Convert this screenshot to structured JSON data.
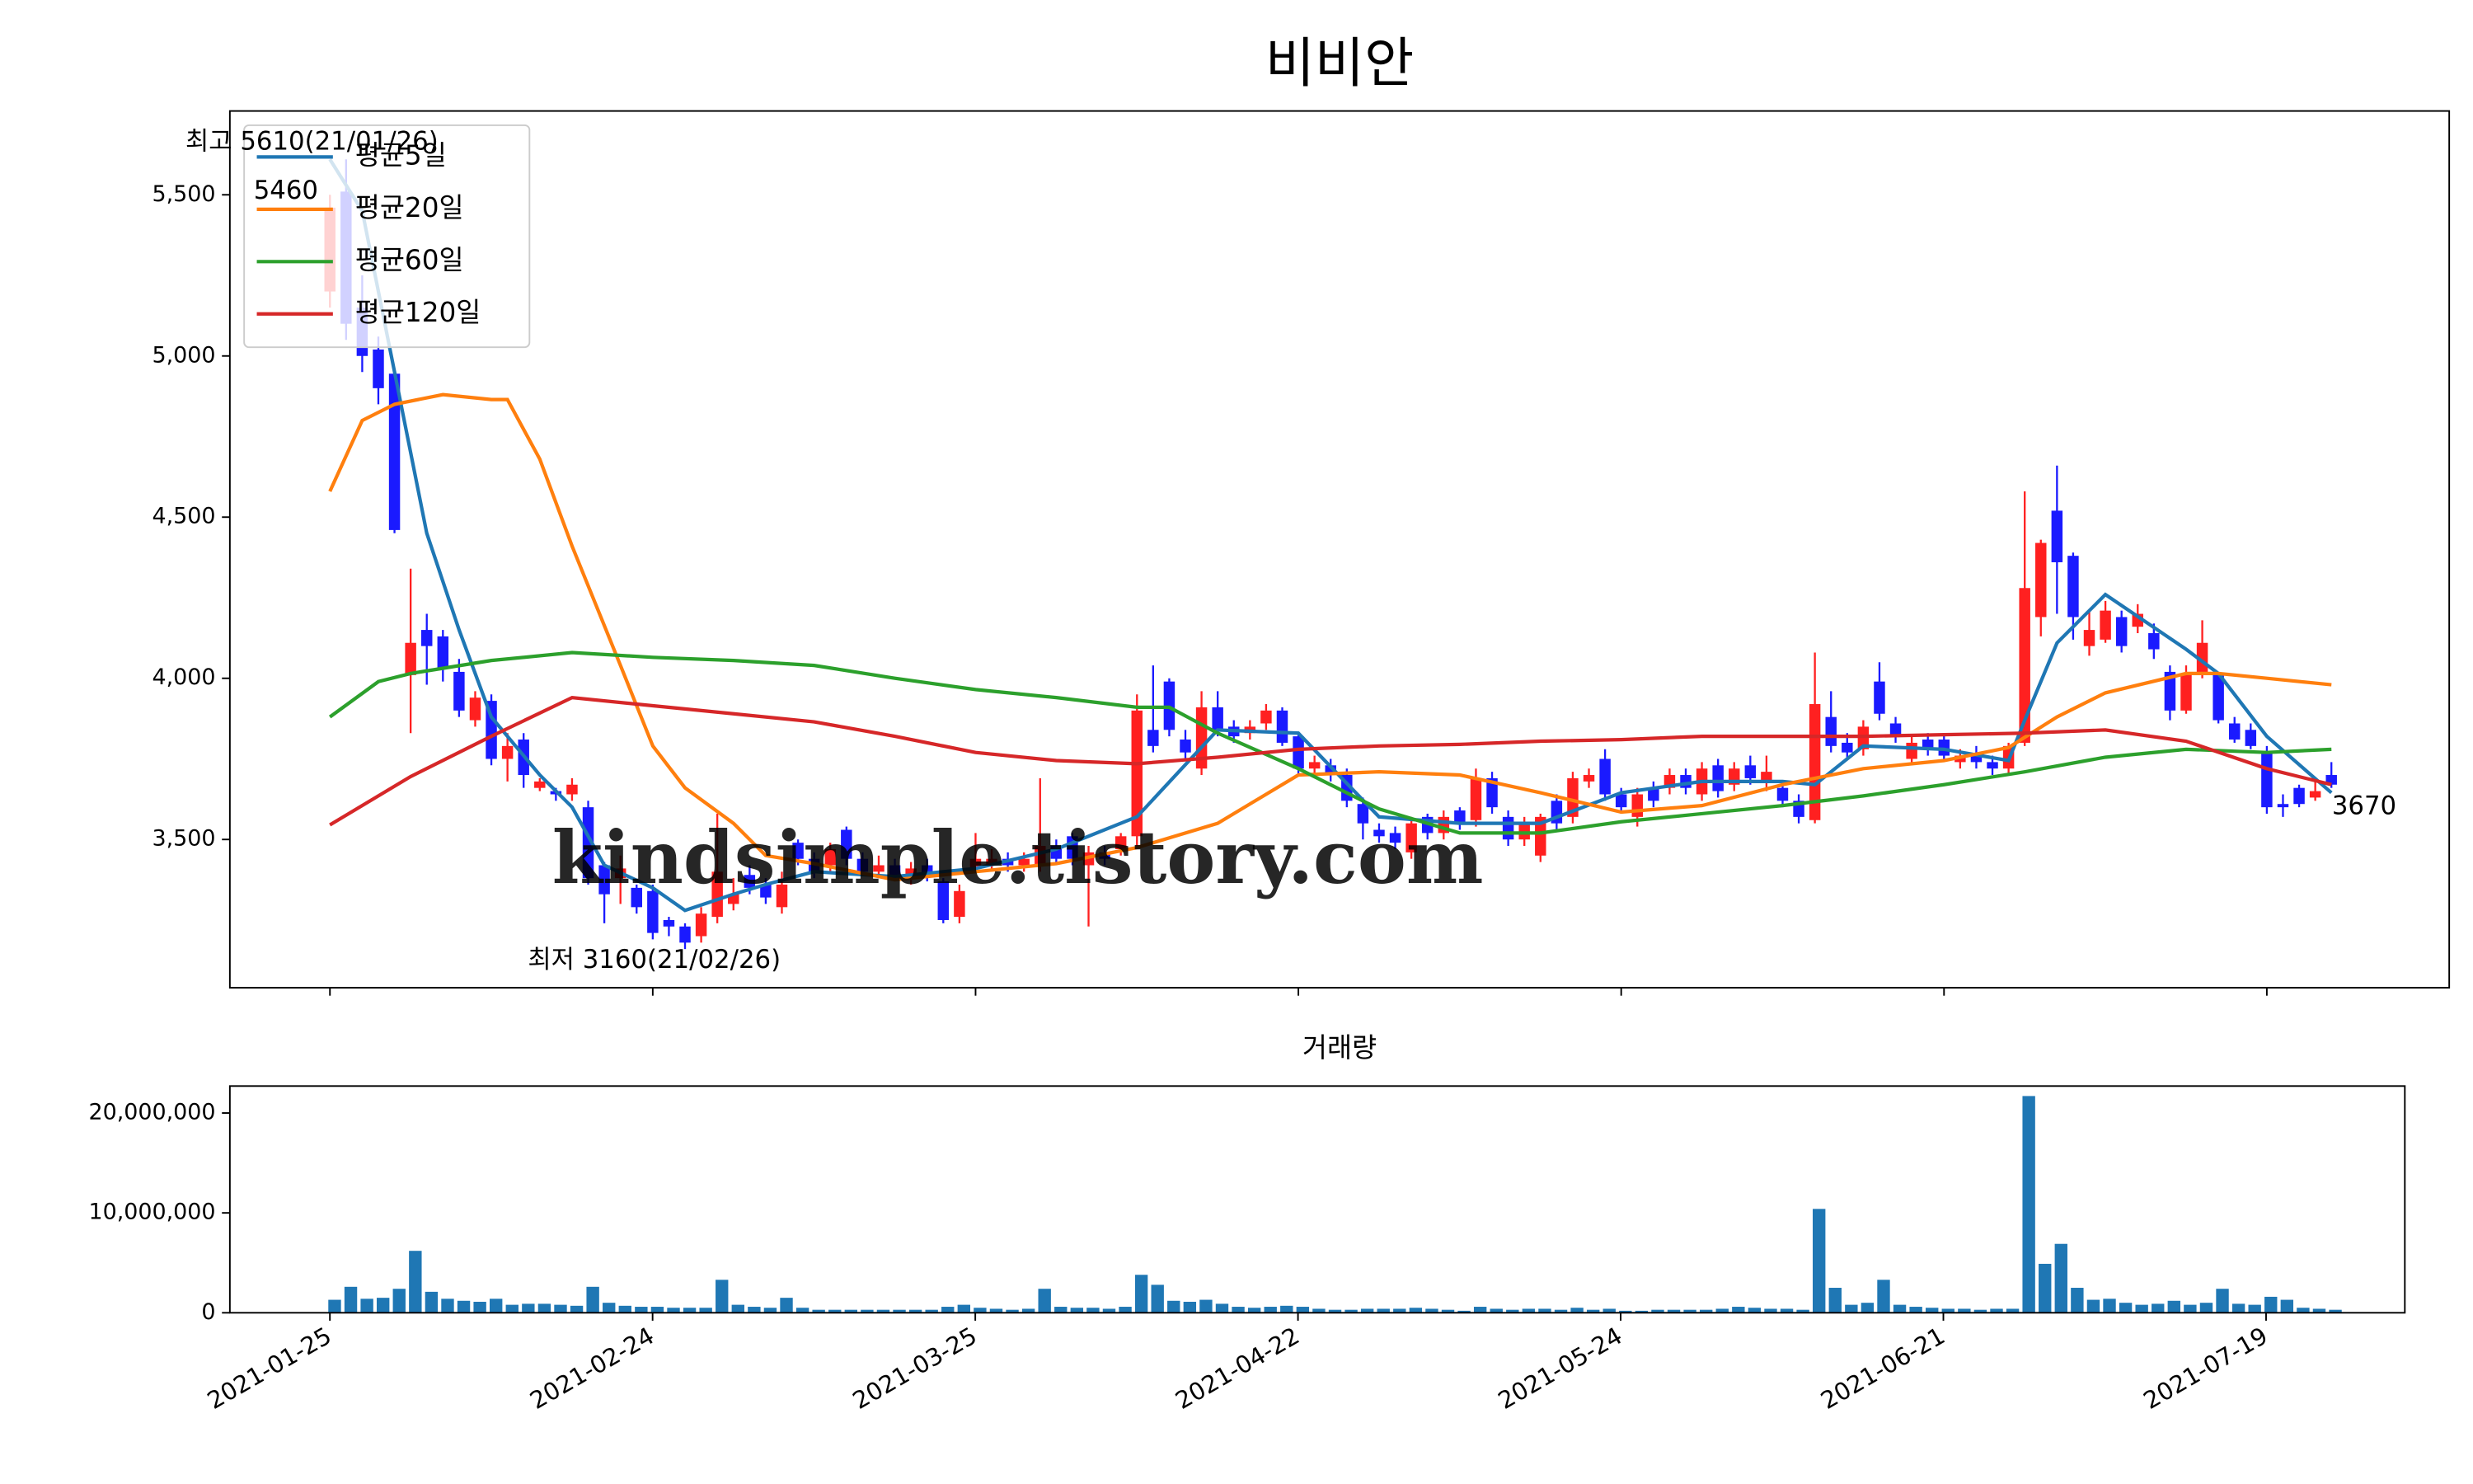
{
  "chart_data": [
    {
      "type": "candlestick",
      "title": "비비안",
      "open": [
        5200,
        5510,
        5150,
        5020,
        4945,
        4010,
        4150,
        4130,
        4020,
        3870,
        3930,
        3750,
        3810,
        3660,
        3650,
        3640,
        3600,
        3420,
        3380,
        3350,
        3340,
        3250,
        3230,
        3200,
        3260,
        3300,
        3390,
        3360,
        3290,
        3490,
        3440,
        3420,
        3530,
        3440,
        3400,
        3420,
        3380,
        3420,
        3370,
        3260,
        3410,
        3420,
        3440,
        3420,
        3420,
        3480,
        3510,
        3420,
        3460,
        3470,
        3510,
        3840,
        3990,
        3810,
        3720,
        3910,
        3850,
        3830,
        3860,
        3900,
        3820,
        3720,
        3730,
        3700,
        3610,
        3530,
        3520,
        3460,
        3570,
        3520,
        3590,
        3560,
        3690,
        3570,
        3500,
        3450,
        3620,
        3570,
        3680,
        3750,
        3640,
        3570,
        3660,
        3660,
        3700,
        3640,
        3730,
        3670,
        3730,
        3680,
        3660,
        3620,
        3560,
        3880,
        3800,
        3780,
        3990,
        3860,
        3750,
        3810,
        3810,
        3740,
        3760,
        3740,
        3720,
        3800,
        4190,
        4520,
        4380,
        4100,
        4120,
        4190,
        4160,
        4140,
        4020,
        3900,
        4010,
        4010,
        3860,
        3840,
        3770,
        3610,
        3660,
        3630,
        3700
      ],
      "high": [
        5500,
        5610,
        5250,
        5060,
        4960,
        4340,
        4200,
        4150,
        4060,
        3960,
        3950,
        3830,
        3830,
        3690,
        3660,
        3690,
        3620,
        3430,
        3450,
        3360,
        3360,
        3260,
        3240,
        3290,
        3580,
        3380,
        3420,
        3380,
        3400,
        3500,
        3460,
        3490,
        3540,
        3460,
        3450,
        3440,
        3430,
        3440,
        3380,
        3360,
        3520,
        3470,
        3460,
        3460,
        3690,
        3500,
        3520,
        3480,
        3480,
        3520,
        3950,
        4040,
        4000,
        3840,
        3960,
        3960,
        3870,
        3870,
        3920,
        3910,
        3830,
        3760,
        3750,
        3720,
        3630,
        3550,
        3540,
        3570,
        3580,
        3590,
        3600,
        3720,
        3710,
        3590,
        3570,
        3580,
        3640,
        3710,
        3720,
        3780,
        3660,
        3660,
        3680,
        3720,
        3720,
        3740,
        3750,
        3740,
        3760,
        3760,
        3680,
        3640,
        4080,
        3960,
        3830,
        3870,
        4050,
        3880,
        3820,
        3830,
        3830,
        3780,
        3790,
        3760,
        3800,
        4580,
        4430,
        4660,
        4390,
        4210,
        4240,
        4210,
        4230,
        4170,
        4040,
        4040,
        4180,
        4020,
        3880,
        3860,
        3790,
        3640,
        3670,
        3680,
        3740
      ],
      "low": [
        5150,
        5050,
        4950,
        4850,
        4450,
        3830,
        3980,
        3990,
        3880,
        3850,
        3730,
        3680,
        3660,
        3650,
        3620,
        3620,
        3360,
        3240,
        3300,
        3270,
        3190,
        3200,
        3160,
        3180,
        3240,
        3280,
        3330,
        3300,
        3270,
        3420,
        3380,
        3400,
        3420,
        3390,
        3380,
        3370,
        3360,
        3370,
        3240,
        3240,
        3400,
        3400,
        3400,
        3400,
        3400,
        3420,
        3420,
        3230,
        3420,
        3450,
        3480,
        3770,
        3820,
        3750,
        3700,
        3820,
        3800,
        3810,
        3840,
        3790,
        3700,
        3700,
        3680,
        3600,
        3500,
        3490,
        3470,
        3440,
        3500,
        3500,
        3530,
        3540,
        3580,
        3480,
        3480,
        3430,
        3530,
        3550,
        3660,
        3620,
        3580,
        3540,
        3600,
        3640,
        3640,
        3620,
        3630,
        3650,
        3670,
        3650,
        3600,
        3550,
        3550,
        3770,
        3750,
        3760,
        3870,
        3800,
        3730,
        3760,
        3740,
        3720,
        3720,
        3700,
        3700,
        3790,
        4130,
        4200,
        4120,
        4070,
        4110,
        4080,
        4140,
        4060,
        3870,
        3890,
        4000,
        3860,
        3800,
        3780,
        3580,
        3570,
        3600,
        3620,
        3660
      ],
      "close": [
        5460,
        5100,
        5000,
        4900,
        4460,
        4110,
        4100,
        4030,
        3900,
        3940,
        3750,
        3790,
        3700,
        3680,
        3640,
        3670,
        3380,
        3330,
        3410,
        3290,
        3210,
        3230,
        3180,
        3270,
        3400,
        3330,
        3350,
        3320,
        3360,
        3440,
        3400,
        3470,
        3440,
        3400,
        3420,
        3390,
        3410,
        3390,
        3250,
        3340,
        3440,
        3440,
        3420,
        3440,
        3480,
        3440,
        3440,
        3460,
        3440,
        3510,
        3900,
        3790,
        3840,
        3770,
        3910,
        3840,
        3820,
        3850,
        3900,
        3800,
        3720,
        3740,
        3700,
        3620,
        3550,
        3510,
        3490,
        3550,
        3520,
        3570,
        3550,
        3690,
        3600,
        3500,
        3550,
        3570,
        3550,
        3690,
        3700,
        3640,
        3600,
        3640,
        3620,
        3700,
        3660,
        3720,
        3650,
        3720,
        3690,
        3710,
        3620,
        3570,
        3920,
        3790,
        3770,
        3850,
        3890,
        3820,
        3800,
        3780,
        3760,
        3760,
        3740,
        3720,
        3790,
        4280,
        4420,
        4360,
        4190,
        4150,
        4210,
        4100,
        4200,
        4090,
        3900,
        4010,
        4110,
        3870,
        3810,
        3790,
        3600,
        3600,
        3610,
        3650,
        3670
      ],
      "up_color": "#ff2020",
      "down_color": "#1a1aff",
      "series": [
        {
          "name": "평균5일",
          "color": "#1f77b4",
          "x": [
            0,
            2,
            4,
            6,
            8,
            10,
            13,
            15,
            17,
            20,
            22,
            25,
            27,
            30,
            35,
            40,
            45,
            50,
            55,
            60,
            65,
            70,
            75,
            80,
            85,
            90,
            92,
            95,
            100,
            104,
            105,
            107,
            110,
            115,
            117,
            120,
            124
          ],
          "values": [
            5610,
            5450,
            4950,
            4450,
            4150,
            3880,
            3700,
            3600,
            3420,
            3350,
            3280,
            3330,
            3360,
            3400,
            3385,
            3410,
            3470,
            3570,
            3840,
            3830,
            3570,
            3550,
            3550,
            3645,
            3680,
            3680,
            3670,
            3790,
            3780,
            3745,
            3870,
            4110,
            4260,
            4090,
            4015,
            3820,
            3645
          ]
        },
        {
          "name": "평균20일",
          "color": "#ff7f0e",
          "x": [
            0,
            2,
            4,
            7,
            10,
            11,
            13,
            15,
            18,
            20,
            22,
            25,
            27,
            30,
            35,
            40,
            45,
            50,
            55,
            60,
            65,
            70,
            75,
            80,
            85,
            90,
            95,
            100,
            104,
            107,
            110,
            115,
            117,
            120,
            124
          ],
          "values": [
            4580,
            4800,
            4850,
            4880,
            4865,
            4865,
            4680,
            4410,
            4040,
            3790,
            3660,
            3550,
            3450,
            3425,
            3375,
            3400,
            3425,
            3475,
            3550,
            3700,
            3710,
            3700,
            3645,
            3585,
            3605,
            3670,
            3720,
            3745,
            3785,
            3880,
            3955,
            4015,
            4015,
            4000,
            3980
          ]
        },
        {
          "name": "평균60일",
          "color": "#2ca02c",
          "x": [
            0,
            3,
            5,
            10,
            15,
            20,
            25,
            30,
            35,
            40,
            45,
            50,
            52,
            55,
            60,
            65,
            70,
            75,
            80,
            85,
            90,
            95,
            100,
            105,
            110,
            115,
            120,
            124
          ],
          "values": [
            3880,
            3990,
            4015,
            4055,
            4080,
            4065,
            4055,
            4040,
            4000,
            3965,
            3940,
            3910,
            3910,
            3830,
            3720,
            3595,
            3520,
            3520,
            3555,
            3580,
            3605,
            3635,
            3670,
            3710,
            3755,
            3780,
            3770,
            3780
          ]
        },
        {
          "name": "평균120일",
          "color": "#d62728",
          "x": [
            0,
            5,
            10,
            15,
            20,
            25,
            30,
            35,
            40,
            45,
            50,
            55,
            60,
            65,
            70,
            75,
            80,
            85,
            90,
            95,
            100,
            105,
            110,
            115,
            120,
            124
          ],
          "values": [
            3545,
            3695,
            3820,
            3940,
            3915,
            3890,
            3865,
            3820,
            3770,
            3745,
            3735,
            3755,
            3780,
            3790,
            3795,
            3805,
            3810,
            3820,
            3820,
            3820,
            3825,
            3830,
            3840,
            3805,
            3720,
            3670
          ]
        }
      ],
      "legend": "upper left",
      "xlim": [
        -6.2,
        131.3
      ],
      "ylim": [
        3040,
        5760
      ],
      "yticks": [
        {
          "value": 3500,
          "label": "3,500"
        },
        {
          "value": 4000,
          "label": "4,000"
        },
        {
          "value": 4500,
          "label": "4,500"
        },
        {
          "value": 5000,
          "label": "5,000"
        },
        {
          "value": 5500,
          "label": "5,500"
        }
      ],
      "annotations": [
        {
          "text": "최고 5610(21/01/26)",
          "color": "#ff0000"
        },
        {
          "text": "5460",
          "color": "#999999"
        },
        {
          "text": "최저 3160(21/02/26)",
          "color": "#0000ff"
        },
        {
          "text": "3670",
          "color": "#000000"
        }
      ],
      "watermark": {
        "text": "kindsimple.tistory.com",
        "color": "#e39af0"
      }
    },
    {
      "type": "bar",
      "title": "거래량",
      "color": "#1f77b4",
      "categories": [
        "2021-01-25",
        null,
        null,
        null,
        null,
        null,
        null,
        null,
        null,
        null,
        null,
        null,
        null,
        null,
        null,
        null,
        null,
        null,
        null,
        null,
        "2021-02-24",
        null,
        null,
        null,
        null,
        null,
        null,
        null,
        null,
        null,
        null,
        null,
        null,
        null,
        null,
        null,
        null,
        null,
        null,
        null,
        "2021-03-25",
        null,
        null,
        null,
        null,
        null,
        null,
        null,
        null,
        null,
        null,
        null,
        null,
        null,
        null,
        null,
        null,
        null,
        null,
        null,
        "2021-04-22",
        null,
        null,
        null,
        null,
        null,
        null,
        null,
        null,
        null,
        null,
        null,
        null,
        null,
        null,
        null,
        null,
        null,
        null,
        null,
        "2021-05-24",
        null,
        null,
        null,
        null,
        null,
        null,
        null,
        null,
        null,
        null,
        null,
        null,
        null,
        null,
        null,
        null,
        null,
        null,
        null,
        "2021-06-21",
        null,
        null,
        null,
        null,
        null,
        null,
        null,
        null,
        null,
        null,
        null,
        null,
        null,
        null,
        null,
        null,
        null,
        null,
        null,
        "2021-07-19",
        null,
        null,
        null,
        null
      ],
      "values": [
        1300000,
        2600000,
        1400000,
        1500000,
        2400000,
        6200000,
        2100000,
        1400000,
        1200000,
        1100000,
        1400000,
        800000,
        900000,
        900000,
        800000,
        700000,
        2600000,
        1000000,
        700000,
        600000,
        600000,
        500000,
        500000,
        500000,
        3300000,
        800000,
        600000,
        500000,
        1500000,
        500000,
        300000,
        300000,
        300000,
        300000,
        300000,
        300000,
        300000,
        300000,
        600000,
        800000,
        500000,
        400000,
        300000,
        400000,
        2400000,
        600000,
        500000,
        500000,
        400000,
        600000,
        3800000,
        2800000,
        1200000,
        1100000,
        1300000,
        900000,
        600000,
        500000,
        600000,
        700000,
        600000,
        400000,
        300000,
        300000,
        400000,
        400000,
        400000,
        500000,
        400000,
        300000,
        200000,
        600000,
        400000,
        300000,
        400000,
        400000,
        300000,
        500000,
        300000,
        400000,
        200000,
        200000,
        300000,
        300000,
        300000,
        300000,
        400000,
        600000,
        500000,
        400000,
        400000,
        300000,
        10400000,
        2500000,
        800000,
        1000000,
        3300000,
        800000,
        600000,
        500000,
        400000,
        400000,
        300000,
        400000,
        400000,
        21700000,
        4900000,
        6900000,
        2500000,
        1300000,
        1400000,
        1000000,
        800000,
        900000,
        1200000,
        800000,
        1000000,
        2400000,
        900000,
        800000,
        1600000,
        1300000,
        500000,
        400000,
        300000
      ],
      "xlim": [
        -6.2,
        128.6
      ],
      "ylim": [
        0,
        22700000
      ],
      "yticks": [
        0,
        {
          "value": 10000000,
          "label": "10,000,000"
        },
        {
          "value": 20000000,
          "label": "20,000,000"
        }
      ]
    }
  ]
}
